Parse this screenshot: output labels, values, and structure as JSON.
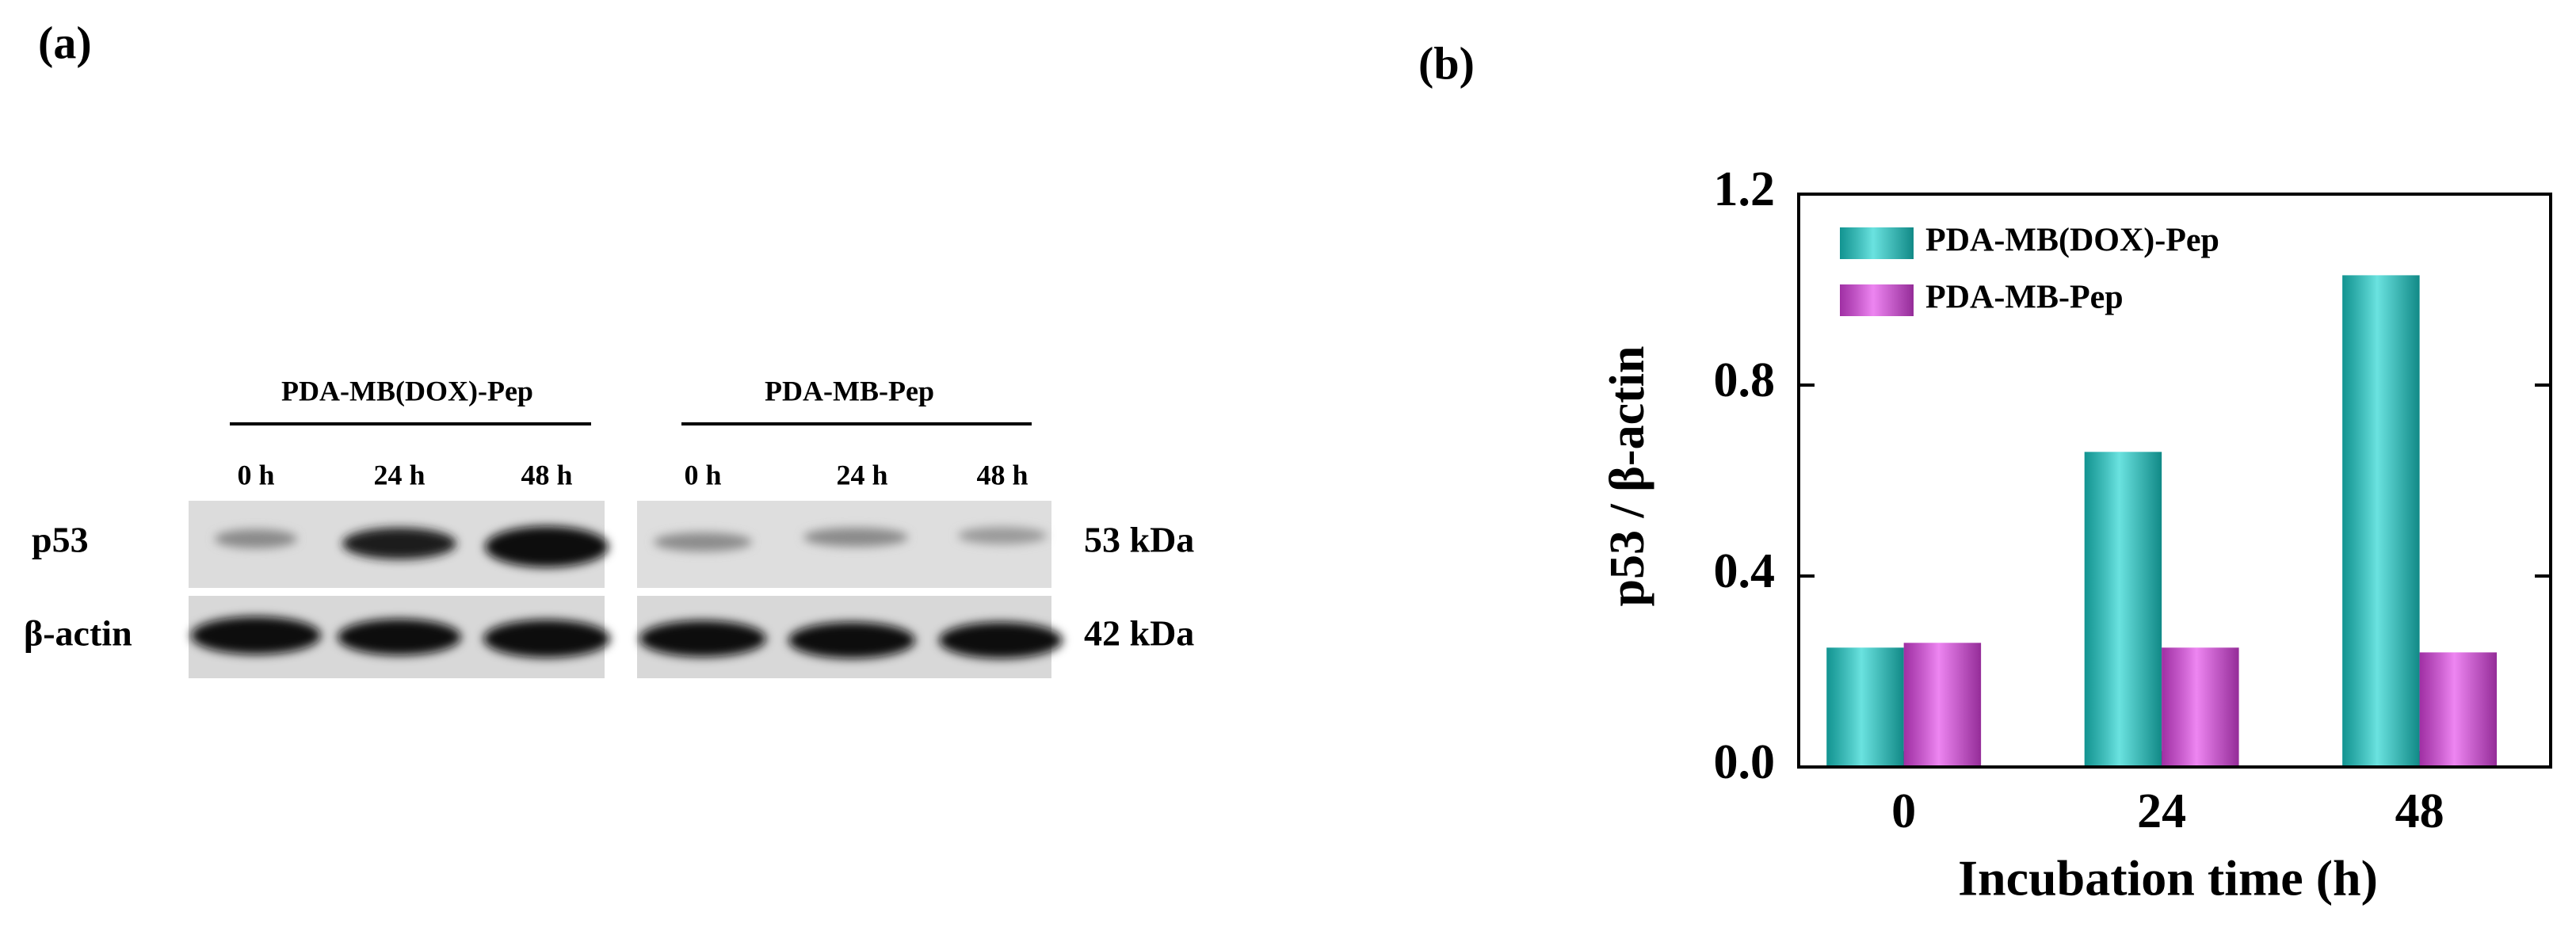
{
  "blot": {
    "panel_label": "(a)",
    "groups": [
      {
        "name": "PDA-MB(DOX)-Pep",
        "lanes": [
          "0 h",
          "24 h",
          "48 h"
        ]
      },
      {
        "name": "PDA-MB-Pep",
        "lanes": [
          "0 h",
          "24 h",
          "48 h"
        ]
      }
    ],
    "rows": [
      {
        "label": "p53",
        "size": "53 kDa"
      },
      {
        "label": "β-actin",
        "size": "42 kDa"
      }
    ]
  },
  "chart_data": {
    "type": "bar",
    "panel_label": "(b)",
    "x_label": "Incubation time (h)",
    "y_label": "p53 / β-actin",
    "categories": [
      "0",
      "24",
      "48"
    ],
    "series": [
      {
        "name": "PDA-MB(DOX)-Pep",
        "color": "#1ad3cf",
        "values": [
          0.25,
          0.66,
          1.03
        ]
      },
      {
        "name": "PDA-MB-Pep",
        "color": "#e444ea",
        "values": [
          0.26,
          0.25,
          0.24
        ]
      }
    ],
    "ylim": [
      0,
      1.2
    ],
    "yticks": [
      {
        "value": 0,
        "label": "0.0"
      },
      0.4,
      0.8,
      1.2
    ],
    "legend": "upper left"
  }
}
